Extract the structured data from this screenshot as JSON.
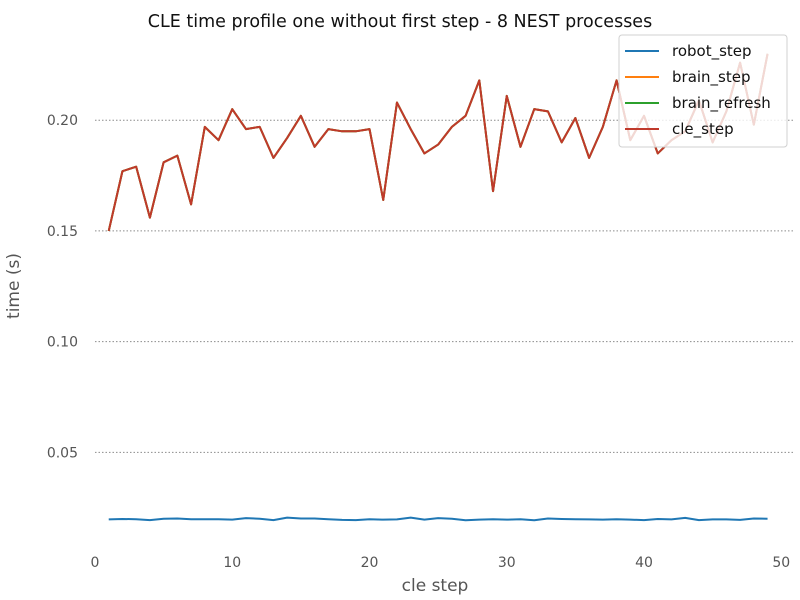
{
  "chart_data": {
    "type": "line",
    "title": "CLE time profile one without first step - 8 NEST processes",
    "xlabel": "cle step",
    "ylabel": "time (s)",
    "xlim": [
      0,
      51
    ],
    "ylim": [
      0.0095,
      0.2385
    ],
    "xticks": [
      0,
      10,
      20,
      30,
      40,
      50
    ],
    "xtick_labels": [
      "0",
      "10",
      "20",
      "30",
      "40",
      "50"
    ],
    "yticks": [
      0.05,
      0.1,
      0.15,
      0.2
    ],
    "ytick_labels": [
      "0.05",
      "0.10",
      "0.15",
      "0.20"
    ],
    "grid": "y-dotted",
    "legend_position": "top-right",
    "x": [
      1,
      2,
      3,
      4,
      5,
      6,
      7,
      8,
      9,
      10,
      11,
      12,
      13,
      14,
      15,
      16,
      17,
      18,
      19,
      20,
      21,
      22,
      23,
      24,
      25,
      26,
      27,
      28,
      29,
      30,
      31,
      32,
      33,
      34,
      35,
      36,
      37,
      38,
      39,
      40,
      41,
      42,
      43,
      44,
      45,
      46,
      47,
      48,
      49
    ],
    "series": [
      {
        "name": "robot_step",
        "color": "#1f77b4",
        "values": [
          0.0197,
          0.0199,
          0.0198,
          0.0194,
          0.02,
          0.0201,
          0.0198,
          0.0198,
          0.0198,
          0.0196,
          0.0203,
          0.02,
          0.0194,
          0.0205,
          0.0201,
          0.0201,
          0.0198,
          0.0195,
          0.0194,
          0.0198,
          0.0196,
          0.0197,
          0.0205,
          0.0196,
          0.0203,
          0.02,
          0.0193,
          0.0196,
          0.0198,
          0.0196,
          0.0198,
          0.0193,
          0.0201,
          0.0199,
          0.0198,
          0.0197,
          0.0196,
          0.0198,
          0.0196,
          0.0194,
          0.0199,
          0.0197,
          0.0204,
          0.0194,
          0.0197,
          0.0197,
          0.0195,
          0.0201,
          0.02
        ]
      },
      {
        "name": "brain_step",
        "color": "#ff7f0e",
        "values": [
          0.15,
          0.177,
          0.179,
          0.156,
          0.181,
          0.184,
          0.162,
          0.197,
          0.191,
          0.205,
          0.196,
          0.197,
          0.183,
          0.192,
          0.202,
          0.188,
          0.196,
          0.195,
          0.195,
          0.196,
          0.164,
          0.208,
          0.196,
          0.185,
          0.189,
          0.197,
          0.202,
          0.218,
          0.168,
          0.211,
          0.188,
          0.205,
          0.204,
          0.19,
          0.201,
          0.183,
          0.197,
          0.218,
          0.191,
          0.202,
          0.185,
          0.191,
          0.195,
          0.209,
          0.19,
          0.204,
          0.226,
          0.198,
          0.23
        ]
      },
      {
        "name": "brain_refresh",
        "color": "#2ca02c",
        "values": [
          0.15,
          0.177,
          0.179,
          0.156,
          0.181,
          0.184,
          0.162,
          0.197,
          0.191,
          0.205,
          0.196,
          0.197,
          0.183,
          0.192,
          0.202,
          0.188,
          0.196,
          0.195,
          0.195,
          0.196,
          0.164,
          0.208,
          0.196,
          0.185,
          0.189,
          0.197,
          0.202,
          0.218,
          0.168,
          0.211,
          0.188,
          0.205,
          0.204,
          0.19,
          0.201,
          0.183,
          0.197,
          0.218,
          0.191,
          0.202,
          0.185,
          0.191,
          0.195,
          0.209,
          0.19,
          0.204,
          0.226,
          0.198,
          0.23
        ]
      },
      {
        "name": "cle_step",
        "color": "#c0392b",
        "values": [
          0.15,
          0.177,
          0.179,
          0.156,
          0.181,
          0.184,
          0.162,
          0.197,
          0.191,
          0.205,
          0.196,
          0.197,
          0.183,
          0.192,
          0.202,
          0.188,
          0.196,
          0.195,
          0.195,
          0.196,
          0.164,
          0.208,
          0.196,
          0.185,
          0.189,
          0.197,
          0.202,
          0.218,
          0.168,
          0.211,
          0.188,
          0.205,
          0.204,
          0.19,
          0.201,
          0.183,
          0.197,
          0.218,
          0.191,
          0.202,
          0.185,
          0.191,
          0.195,
          0.209,
          0.19,
          0.204,
          0.226,
          0.198,
          0.23
        ]
      }
    ]
  }
}
